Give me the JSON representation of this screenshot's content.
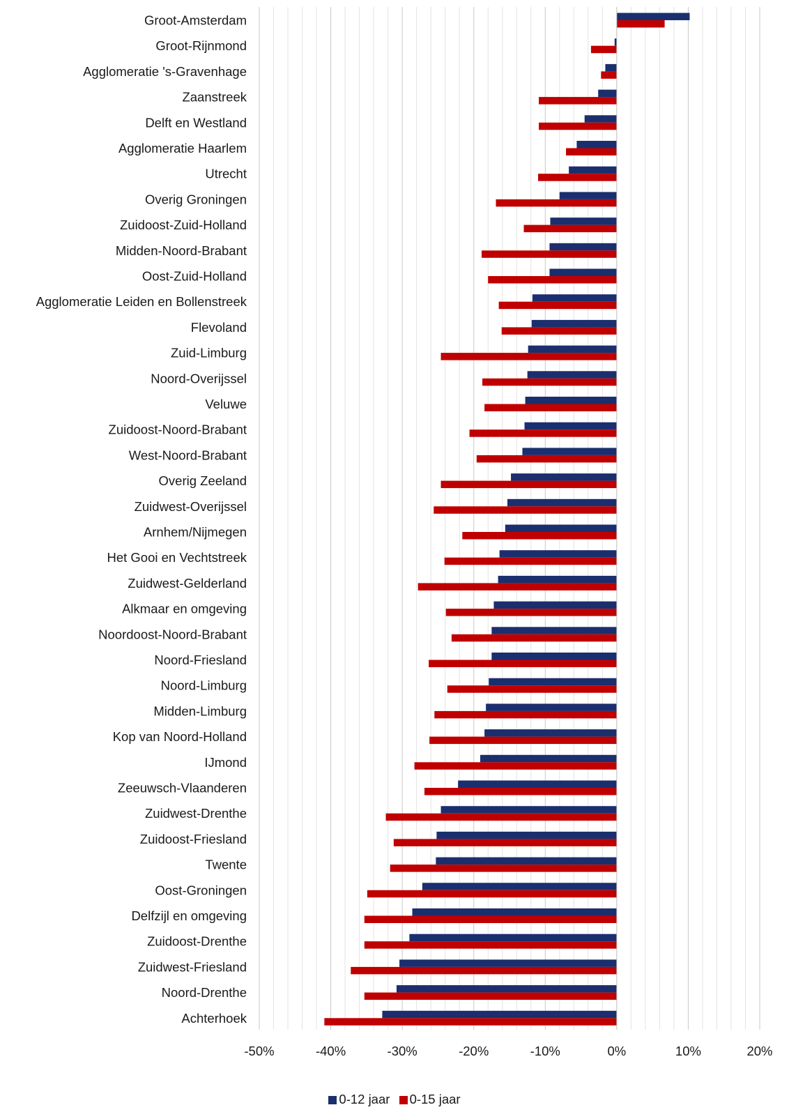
{
  "chart_data": {
    "type": "bar",
    "orientation": "horizontal",
    "title": "",
    "xlabel": "",
    "ylabel": "",
    "xlim": [
      -50,
      20
    ],
    "x_ticks": [
      "-50%",
      "-40%",
      "-30%",
      "-20%",
      "-10%",
      "0%",
      "10%",
      "20%"
    ],
    "x_tick_values": [
      -50,
      -40,
      -30,
      -20,
      -10,
      0,
      10,
      20
    ],
    "minor_grid_step": 2,
    "grid": true,
    "legend_position": "bottom",
    "categories": [
      "Groot-Amsterdam",
      "Groot-Rijnmond",
      "Agglomeratie 's-Gravenhage",
      "Zaanstreek",
      "Delft en Westland",
      "Agglomeratie Haarlem",
      "Utrecht",
      "Overig Groningen",
      "Zuidoost-Zuid-Holland",
      "Midden-Noord-Brabant",
      "Oost-Zuid-Holland",
      "Agglomeratie Leiden en Bollenstreek",
      "Flevoland",
      "Zuid-Limburg",
      "Noord-Overijssel",
      "Veluwe",
      "Zuidoost-Noord-Brabant",
      "West-Noord-Brabant",
      "Overig Zeeland",
      "Zuidwest-Overijssel",
      "Arnhem/Nijmegen",
      "Het Gooi en Vechtstreek",
      "Zuidwest-Gelderland",
      "Alkmaar en omgeving",
      "Noordoost-Noord-Brabant",
      "Noord-Friesland",
      "Noord-Limburg",
      "Midden-Limburg",
      "Kop van Noord-Holland",
      "IJmond",
      "Zeeuwsch-Vlaanderen",
      "Zuidwest-Drenthe",
      "Zuidoost-Friesland",
      "Twente",
      "Oost-Groningen",
      "Delfzijl en omgeving",
      "Zuidoost-Drenthe",
      "Zuidwest-Friesland",
      "Noord-Drenthe",
      "Achterhoek"
    ],
    "series": [
      {
        "name": "0-12 jaar",
        "color": "#1b2f6e",
        "values": [
          10.2,
          -0.3,
          -1.6,
          -2.6,
          -4.5,
          -5.6,
          -6.7,
          -8.0,
          -9.3,
          -9.4,
          -9.4,
          -11.8,
          -11.9,
          -12.4,
          -12.5,
          -12.8,
          -12.9,
          -13.2,
          -14.8,
          -15.3,
          -15.6,
          -16.4,
          -16.6,
          -17.2,
          -17.5,
          -17.5,
          -17.9,
          -18.3,
          -18.5,
          -19.1,
          -22.2,
          -24.6,
          -25.2,
          -25.3,
          -27.2,
          -28.6,
          -29.0,
          -30.4,
          -30.8,
          -32.8
        ]
      },
      {
        "name": "0-15 jaar",
        "color": "#c00000",
        "values": [
          6.7,
          -3.6,
          -2.2,
          -10.9,
          -10.9,
          -7.1,
          -11.0,
          -16.9,
          -13.0,
          -18.9,
          -18.0,
          -16.5,
          -16.1,
          -24.6,
          -18.8,
          -18.5,
          -20.6,
          -19.6,
          -24.6,
          -25.6,
          -21.6,
          -24.1,
          -27.8,
          -23.9,
          -23.1,
          -26.3,
          -23.7,
          -25.5,
          -26.2,
          -28.3,
          -26.9,
          -32.3,
          -31.2,
          -31.7,
          -34.9,
          -35.3,
          -35.3,
          -37.2,
          -35.3,
          -40.9
        ]
      }
    ]
  }
}
